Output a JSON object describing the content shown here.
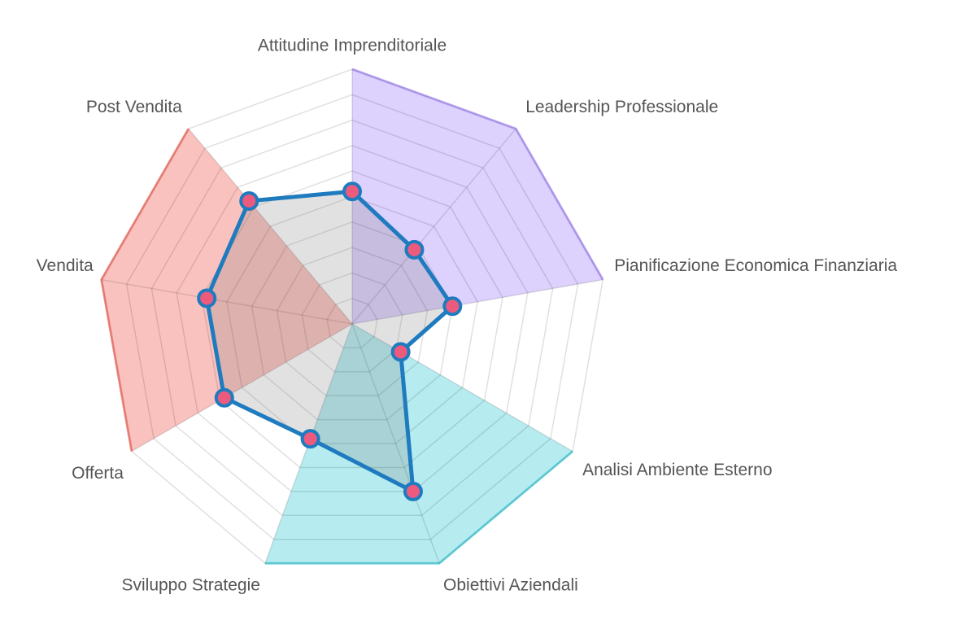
{
  "chart_data": {
    "type": "radar",
    "categories": [
      "Attitudine Imprenditoriale",
      "Leadership Professionale",
      "Pianificazione Economica Finanziaria",
      "Analisi Ambiente Esterno",
      "Obiettivi Aziendali",
      "Sviluppo Strategie",
      "Offerta",
      "Vendita",
      "Post Vendita"
    ],
    "series": [
      {
        "color": "#1f7bbf",
        "point_color": "#ec5b7d",
        "values": [
          5.2,
          3.8,
          4,
          2.2,
          7,
          4.8,
          5.8,
          5.8,
          6.3
        ]
      }
    ],
    "rlim": [
      0,
      10
    ],
    "rticks": [
      1,
      2,
      3,
      4,
      5,
      6,
      7,
      8,
      9,
      10
    ],
    "grid": true
  }
}
